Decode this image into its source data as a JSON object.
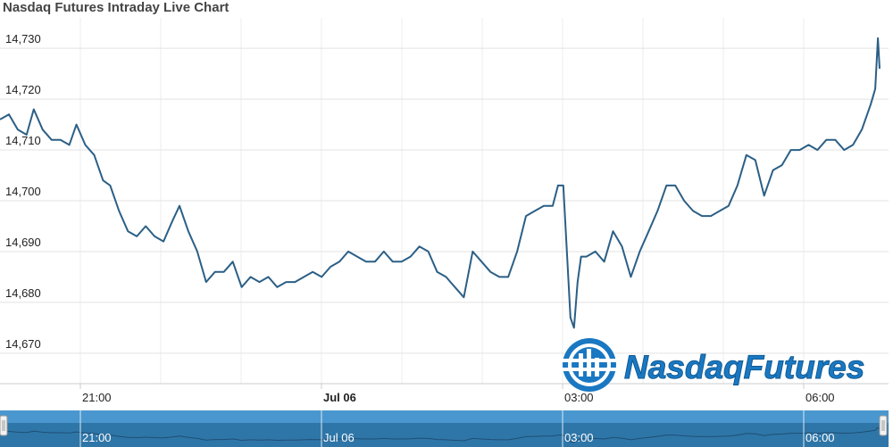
{
  "title": "Nasdaq Futures Intraday Live Chart",
  "logo_text": "NasdaqFutures",
  "colors": {
    "line": "#2b5f86",
    "grid": "#e3e3e3",
    "navigator_fill": "#2f76a8",
    "navigator_band": "#4a97cf",
    "logo_blue": "#1a78c2",
    "title": "#444444"
  },
  "navigator": {
    "labels": [
      "21:00",
      "Jul 06",
      "03:00",
      "06:00"
    ]
  },
  "chart_data": {
    "type": "line",
    "title": "Nasdaq Futures Intraday Live Chart",
    "xlabel": "",
    "ylabel": "",
    "x_ticks": [
      "21:00",
      "Jul 06",
      "03:00",
      "06:00"
    ],
    "y_ticks": [
      "14,670",
      "14,680",
      "14,690",
      "14,700",
      "14,710",
      "14,720",
      "14,730"
    ],
    "ylim": [
      14664,
      14736
    ],
    "xlim": [
      0,
      1000
    ],
    "grid": true,
    "legend": "none",
    "series": [
      {
        "x": [
          0,
          10,
          20,
          30,
          38,
          48,
          58,
          68,
          78,
          86,
          96,
          106,
          116,
          124,
          134,
          144,
          154,
          164,
          174,
          184,
          194,
          202,
          212,
          222,
          232,
          242,
          252,
          262,
          272,
          282,
          292,
          302,
          312,
          322,
          332,
          342,
          352,
          362,
          372,
          382,
          392,
          402,
          412,
          422,
          432,
          442,
          452,
          462,
          472,
          482,
          492,
          502,
          512,
          522,
          532,
          542,
          552,
          562,
          572,
          582,
          592,
          602,
          612,
          622,
          628,
          634,
          638,
          642,
          646,
          650,
          654,
          660,
          670,
          680,
          690,
          700,
          710,
          720,
          730,
          740,
          750,
          760,
          770,
          780,
          790,
          800,
          810,
          820,
          830,
          840,
          850,
          860,
          870,
          880,
          890,
          900,
          910,
          920,
          930,
          940,
          950,
          960,
          970,
          980,
          985,
          988,
          990
        ],
        "y": [
          14716,
          14717,
          14714,
          14713,
          14718,
          14714,
          14712,
          14712,
          14711,
          14715,
          14711,
          14709,
          14704,
          14703,
          14698,
          14694,
          14693,
          14695,
          14693,
          14692,
          14696,
          14699,
          14694,
          14690,
          14684,
          14686,
          14686,
          14688,
          14683,
          14685,
          14684,
          14685,
          14683,
          14684,
          14684,
          14685,
          14686,
          14685,
          14687,
          14688,
          14690,
          14689,
          14688,
          14688,
          14690,
          14688,
          14688,
          14689,
          14691,
          14690,
          14686,
          14685,
          14683,
          14681,
          14690,
          14688,
          14686,
          14685,
          14685,
          14690,
          14697,
          14698,
          14699,
          14699,
          14703,
          14703,
          14690,
          14677,
          14675,
          14684,
          14689,
          14689,
          14690,
          14688,
          14694,
          14691,
          14685,
          14690,
          14694,
          14698,
          14703,
          14703,
          14700,
          14698,
          14697,
          14697,
          14698,
          14699,
          14703,
          14709,
          14708,
          14701,
          14706,
          14707,
          14710,
          14710,
          14711,
          14710,
          14712,
          14712,
          14710,
          14711,
          14714,
          14719,
          14722,
          14732,
          14726
        ]
      }
    ]
  }
}
